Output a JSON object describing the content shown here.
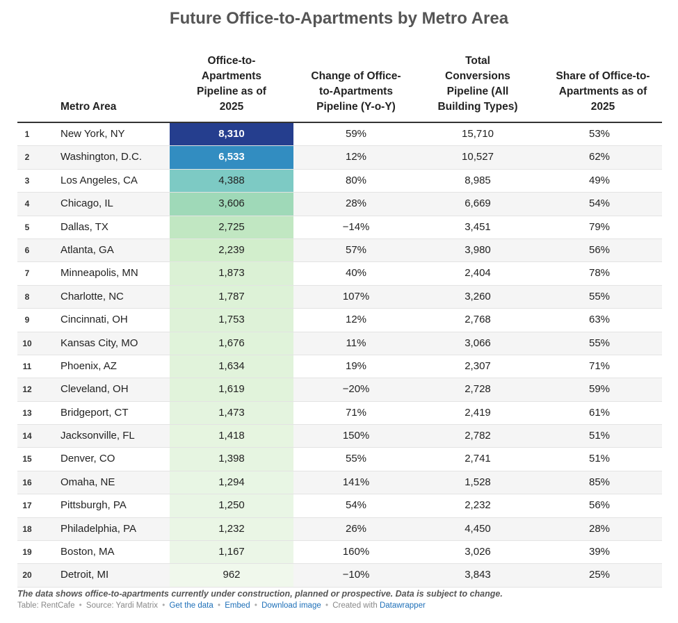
{
  "title": "Future Office-to-Apartments by Metro Area",
  "columns": {
    "metro": "Metro Area",
    "pipeline": "Office-to-Apartments Pipeline as of 2025",
    "yoy": "Change of Office-to-Apartments Pipeline (Y-o-Y)",
    "total": "Total Conversions Pipeline (All Building Types)",
    "share": "Share of Office-to-Apartments as of 2025"
  },
  "colors": {
    "scale": [
      "#f0f8ec",
      "#d4efcd",
      "#a8ddb5",
      "#72c5c8",
      "#4aa8cc",
      "#1f77b8",
      "#253e8e"
    ]
  },
  "chart_data": {
    "type": "table",
    "title": "Future Office-to-Apartments by Metro Area",
    "rows": [
      {
        "rank": "1",
        "metro": "New York, NY",
        "pipeline": 8310,
        "pipeline_label": "8,310",
        "yoy": "59%",
        "total": "15,710",
        "share": "53%"
      },
      {
        "rank": "2",
        "metro": "Washington, D.C.",
        "pipeline": 6533,
        "pipeline_label": "6,533",
        "yoy": "12%",
        "total": "10,527",
        "share": "62%"
      },
      {
        "rank": "3",
        "metro": "Los Angeles, CA",
        "pipeline": 4388,
        "pipeline_label": "4,388",
        "yoy": "80%",
        "total": "8,985",
        "share": "49%"
      },
      {
        "rank": "4",
        "metro": "Chicago, IL",
        "pipeline": 3606,
        "pipeline_label": "3,606",
        "yoy": "28%",
        "total": "6,669",
        "share": "54%"
      },
      {
        "rank": "5",
        "metro": "Dallas, TX",
        "pipeline": 2725,
        "pipeline_label": "2,725",
        "yoy": "−14%",
        "total": "3,451",
        "share": "79%"
      },
      {
        "rank": "6",
        "metro": "Atlanta, GA",
        "pipeline": 2239,
        "pipeline_label": "2,239",
        "yoy": "57%",
        "total": "3,980",
        "share": "56%"
      },
      {
        "rank": "7",
        "metro": "Minneapolis, MN",
        "pipeline": 1873,
        "pipeline_label": "1,873",
        "yoy": "40%",
        "total": "2,404",
        "share": "78%"
      },
      {
        "rank": "8",
        "metro": "Charlotte, NC",
        "pipeline": 1787,
        "pipeline_label": "1,787",
        "yoy": "107%",
        "total": "3,260",
        "share": "55%"
      },
      {
        "rank": "9",
        "metro": "Cincinnati, OH",
        "pipeline": 1753,
        "pipeline_label": "1,753",
        "yoy": "12%",
        "total": "2,768",
        "share": "63%"
      },
      {
        "rank": "10",
        "metro": "Kansas City, MO",
        "pipeline": 1676,
        "pipeline_label": "1,676",
        "yoy": "11%",
        "total": "3,066",
        "share": "55%"
      },
      {
        "rank": "11",
        "metro": "Phoenix, AZ",
        "pipeline": 1634,
        "pipeline_label": "1,634",
        "yoy": "19%",
        "total": "2,307",
        "share": "71%"
      },
      {
        "rank": "12",
        "metro": "Cleveland, OH",
        "pipeline": 1619,
        "pipeline_label": "1,619",
        "yoy": "−20%",
        "total": "2,728",
        "share": "59%"
      },
      {
        "rank": "13",
        "metro": "Bridgeport, CT",
        "pipeline": 1473,
        "pipeline_label": "1,473",
        "yoy": "71%",
        "total": "2,419",
        "share": "61%"
      },
      {
        "rank": "14",
        "metro": "Jacksonville, FL",
        "pipeline": 1418,
        "pipeline_label": "1,418",
        "yoy": "150%",
        "total": "2,782",
        "share": "51%"
      },
      {
        "rank": "15",
        "metro": "Denver, CO",
        "pipeline": 1398,
        "pipeline_label": "1,398",
        "yoy": "55%",
        "total": "2,741",
        "share": "51%"
      },
      {
        "rank": "16",
        "metro": "Omaha, NE",
        "pipeline": 1294,
        "pipeline_label": "1,294",
        "yoy": "141%",
        "total": "1,528",
        "share": "85%"
      },
      {
        "rank": "17",
        "metro": "Pittsburgh, PA",
        "pipeline": 1250,
        "pipeline_label": "1,250",
        "yoy": "54%",
        "total": "2,232",
        "share": "56%"
      },
      {
        "rank": "18",
        "metro": "Philadelphia, PA",
        "pipeline": 1232,
        "pipeline_label": "1,232",
        "yoy": "26%",
        "total": "4,450",
        "share": "28%"
      },
      {
        "rank": "19",
        "metro": "Boston, MA",
        "pipeline": 1167,
        "pipeline_label": "1,167",
        "yoy": "160%",
        "total": "3,026",
        "share": "39%"
      },
      {
        "rank": "20",
        "metro": "Detroit, MI",
        "pipeline": 962,
        "pipeline_label": "962",
        "yoy": "−10%",
        "total": "3,843",
        "share": "25%"
      }
    ]
  },
  "notes": "The data shows office-to-apartments currently under construction, planned or prospective. Data is subject to change.",
  "footer": {
    "table_credit": "Table: RentCafe",
    "source": "Source: Yardi Matrix",
    "get_data": "Get the data",
    "embed": "Embed",
    "download": "Download image",
    "created": "Created with",
    "datawrapper": "Datawrapper",
    "sep": "•"
  }
}
